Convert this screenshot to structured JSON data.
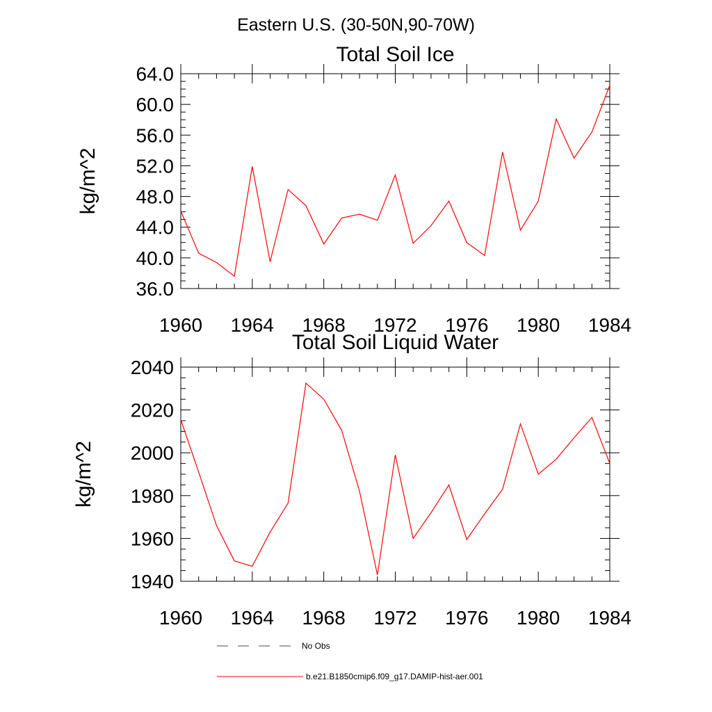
{
  "figure": {
    "title": "Eastern U.S. (30-50N,90-70W)"
  },
  "chart_data": [
    {
      "type": "line",
      "title": "Total Soil Ice",
      "xlabel": "",
      "ylabel": "kg/m^2",
      "xlim": [
        1960,
        1984
      ],
      "ylim": [
        36,
        64
      ],
      "xticks": [
        1960,
        1964,
        1968,
        1972,
        1976,
        1980,
        1984
      ],
      "yticks": [
        36,
        40,
        44,
        48,
        52,
        56,
        60,
        64
      ],
      "ytick_labels": [
        "36.0",
        "40.0",
        "44.0",
        "48.0",
        "52.0",
        "56.0",
        "60.0",
        "64.0"
      ],
      "xminor_step": 1,
      "yminor_step": 1,
      "grid": false,
      "series": [
        {
          "name": "b.e21.B1850cmip6.f09_g17.DAMIP-hist-aer.001",
          "color": "#ff0000",
          "x": [
            1960,
            1961,
            1962,
            1963,
            1964,
            1965,
            1966,
            1967,
            1968,
            1969,
            1970,
            1971,
            1972,
            1973,
            1974,
            1975,
            1976,
            1977,
            1978,
            1979,
            1980,
            1981,
            1982,
            1983,
            1984
          ],
          "values": [
            46.1,
            40.6,
            39.4,
            37.6,
            51.9,
            39.5,
            48.9,
            46.8,
            41.8,
            45.2,
            45.7,
            44.9,
            50.8,
            41.9,
            44.2,
            47.4,
            42.0,
            40.3,
            53.8,
            43.6,
            47.4,
            58.1,
            53.0,
            56.4,
            62.5
          ]
        }
      ]
    },
    {
      "type": "line",
      "title": "Total Soil Liquid Water",
      "xlabel": "",
      "ylabel": "kg/m^2",
      "xlim": [
        1960,
        1984
      ],
      "ylim": [
        1940,
        2040
      ],
      "xticks": [
        1960,
        1964,
        1968,
        1972,
        1976,
        1980,
        1984
      ],
      "yticks": [
        1940,
        1960,
        1980,
        2000,
        2020,
        2040
      ],
      "ytick_labels": [
        "1940",
        "1960",
        "1980",
        "2000",
        "2020",
        "2040"
      ],
      "xminor_step": 1,
      "yminor_step": 5,
      "grid": false,
      "series": [
        {
          "name": "b.e21.B1850cmip6.f09_g17.DAMIP-hist-aer.001",
          "color": "#ff0000",
          "x": [
            1960,
            1961,
            1962,
            1963,
            1964,
            1965,
            1966,
            1967,
            1968,
            1969,
            1970,
            1971,
            1972,
            1973,
            1974,
            1975,
            1976,
            1977,
            1978,
            1979,
            1980,
            1981,
            1982,
            1983,
            1984
          ],
          "values": [
            2015.5,
            1991.0,
            1966.0,
            1949.5,
            1947.0,
            1963.0,
            1976.5,
            2032.5,
            2025.0,
            2010.5,
            1982.0,
            1943.0,
            1999.0,
            1960.0,
            1972.0,
            1985.0,
            1959.5,
            1971.5,
            1983.0,
            2013.5,
            1990.0,
            1997.0,
            2007.0,
            2016.5,
            1995.0
          ]
        }
      ]
    }
  ],
  "legend": {
    "position": "bottom",
    "items": [
      {
        "label": "No Obs",
        "color": "#4a4a6a",
        "dash": "dashed"
      },
      {
        "label": "b.e21.B1850cmip6.f09_g17.DAMIP-hist-aer.001",
        "color": "#ff0000",
        "dash": "solid"
      }
    ]
  }
}
